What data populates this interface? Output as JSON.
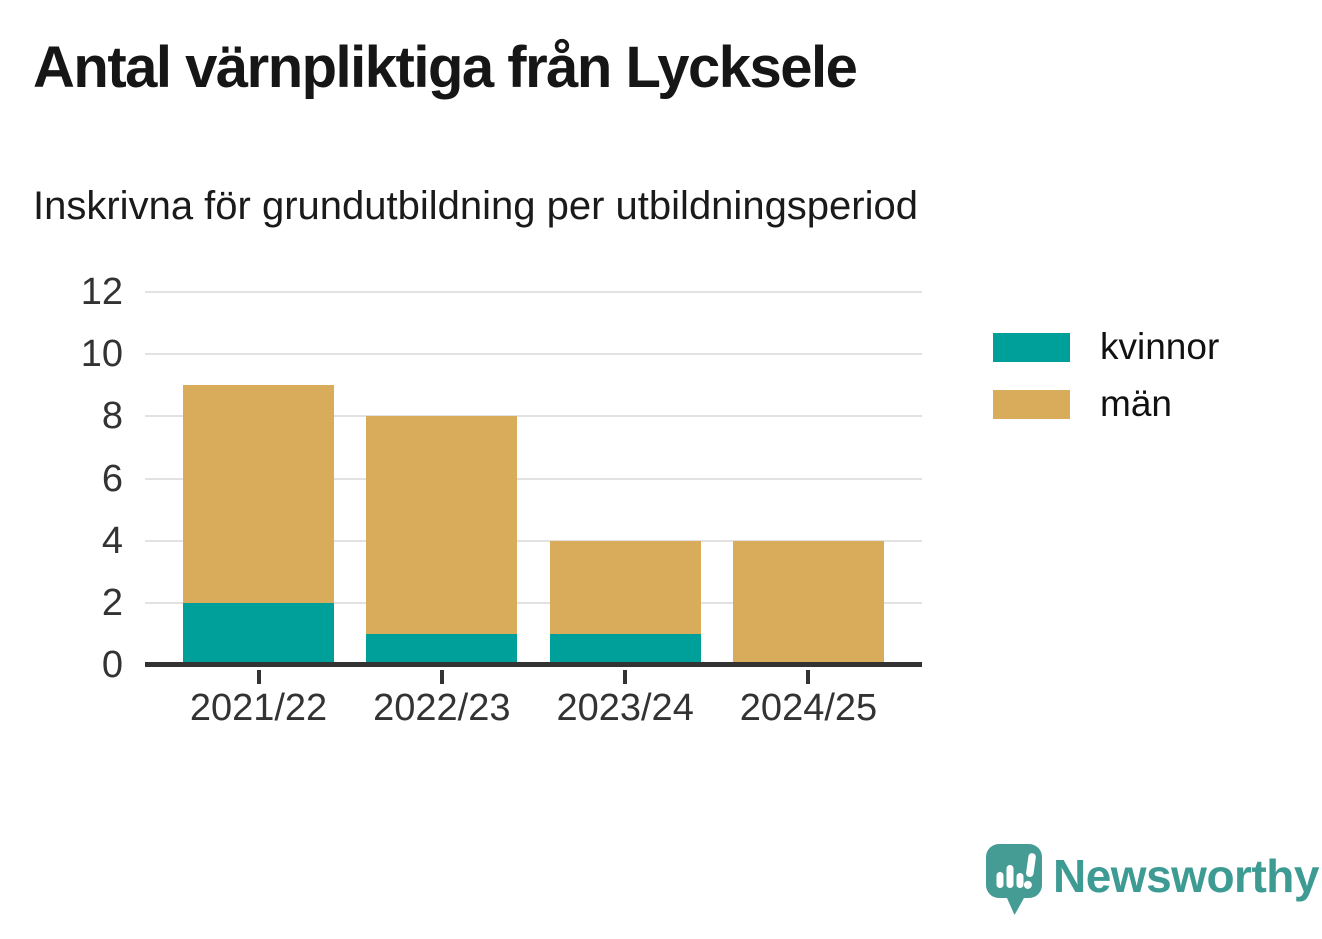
{
  "header": {
    "title": "Antal värnpliktiga från Lycksele",
    "subtitle": "Inskrivna för grundutbildning per utbildningsperiod"
  },
  "chart_data": {
    "type": "bar",
    "stacked": true,
    "title": "Antal värnpliktiga från Lycksele",
    "subtitle": "Inskrivna för grundutbildning per utbildningsperiod",
    "categories": [
      "2021/22",
      "2022/23",
      "2023/24",
      "2024/25"
    ],
    "series": [
      {
        "name": "kvinnor",
        "color": "#00a09a",
        "values": [
          2,
          1,
          1,
          0
        ]
      },
      {
        "name": "män",
        "color": "#d9ac5b",
        "values": [
          7,
          7,
          3,
          4
        ]
      }
    ],
    "totals": [
      9,
      8,
      4,
      4
    ],
    "ylim": [
      0,
      12
    ],
    "yticks": [
      0,
      2,
      4,
      6,
      8,
      10,
      12
    ],
    "xlabel": "",
    "ylabel": "",
    "grid": true,
    "legend_position": "right"
  },
  "branding": {
    "logo_text": "Newsworthy",
    "logo_color": "#3e9b94",
    "logo_icon": "speech-bubble-bar-chart-icon"
  },
  "colors": {
    "axis": "#333333",
    "grid": "#e2e2e2",
    "title_text": "#161616"
  }
}
